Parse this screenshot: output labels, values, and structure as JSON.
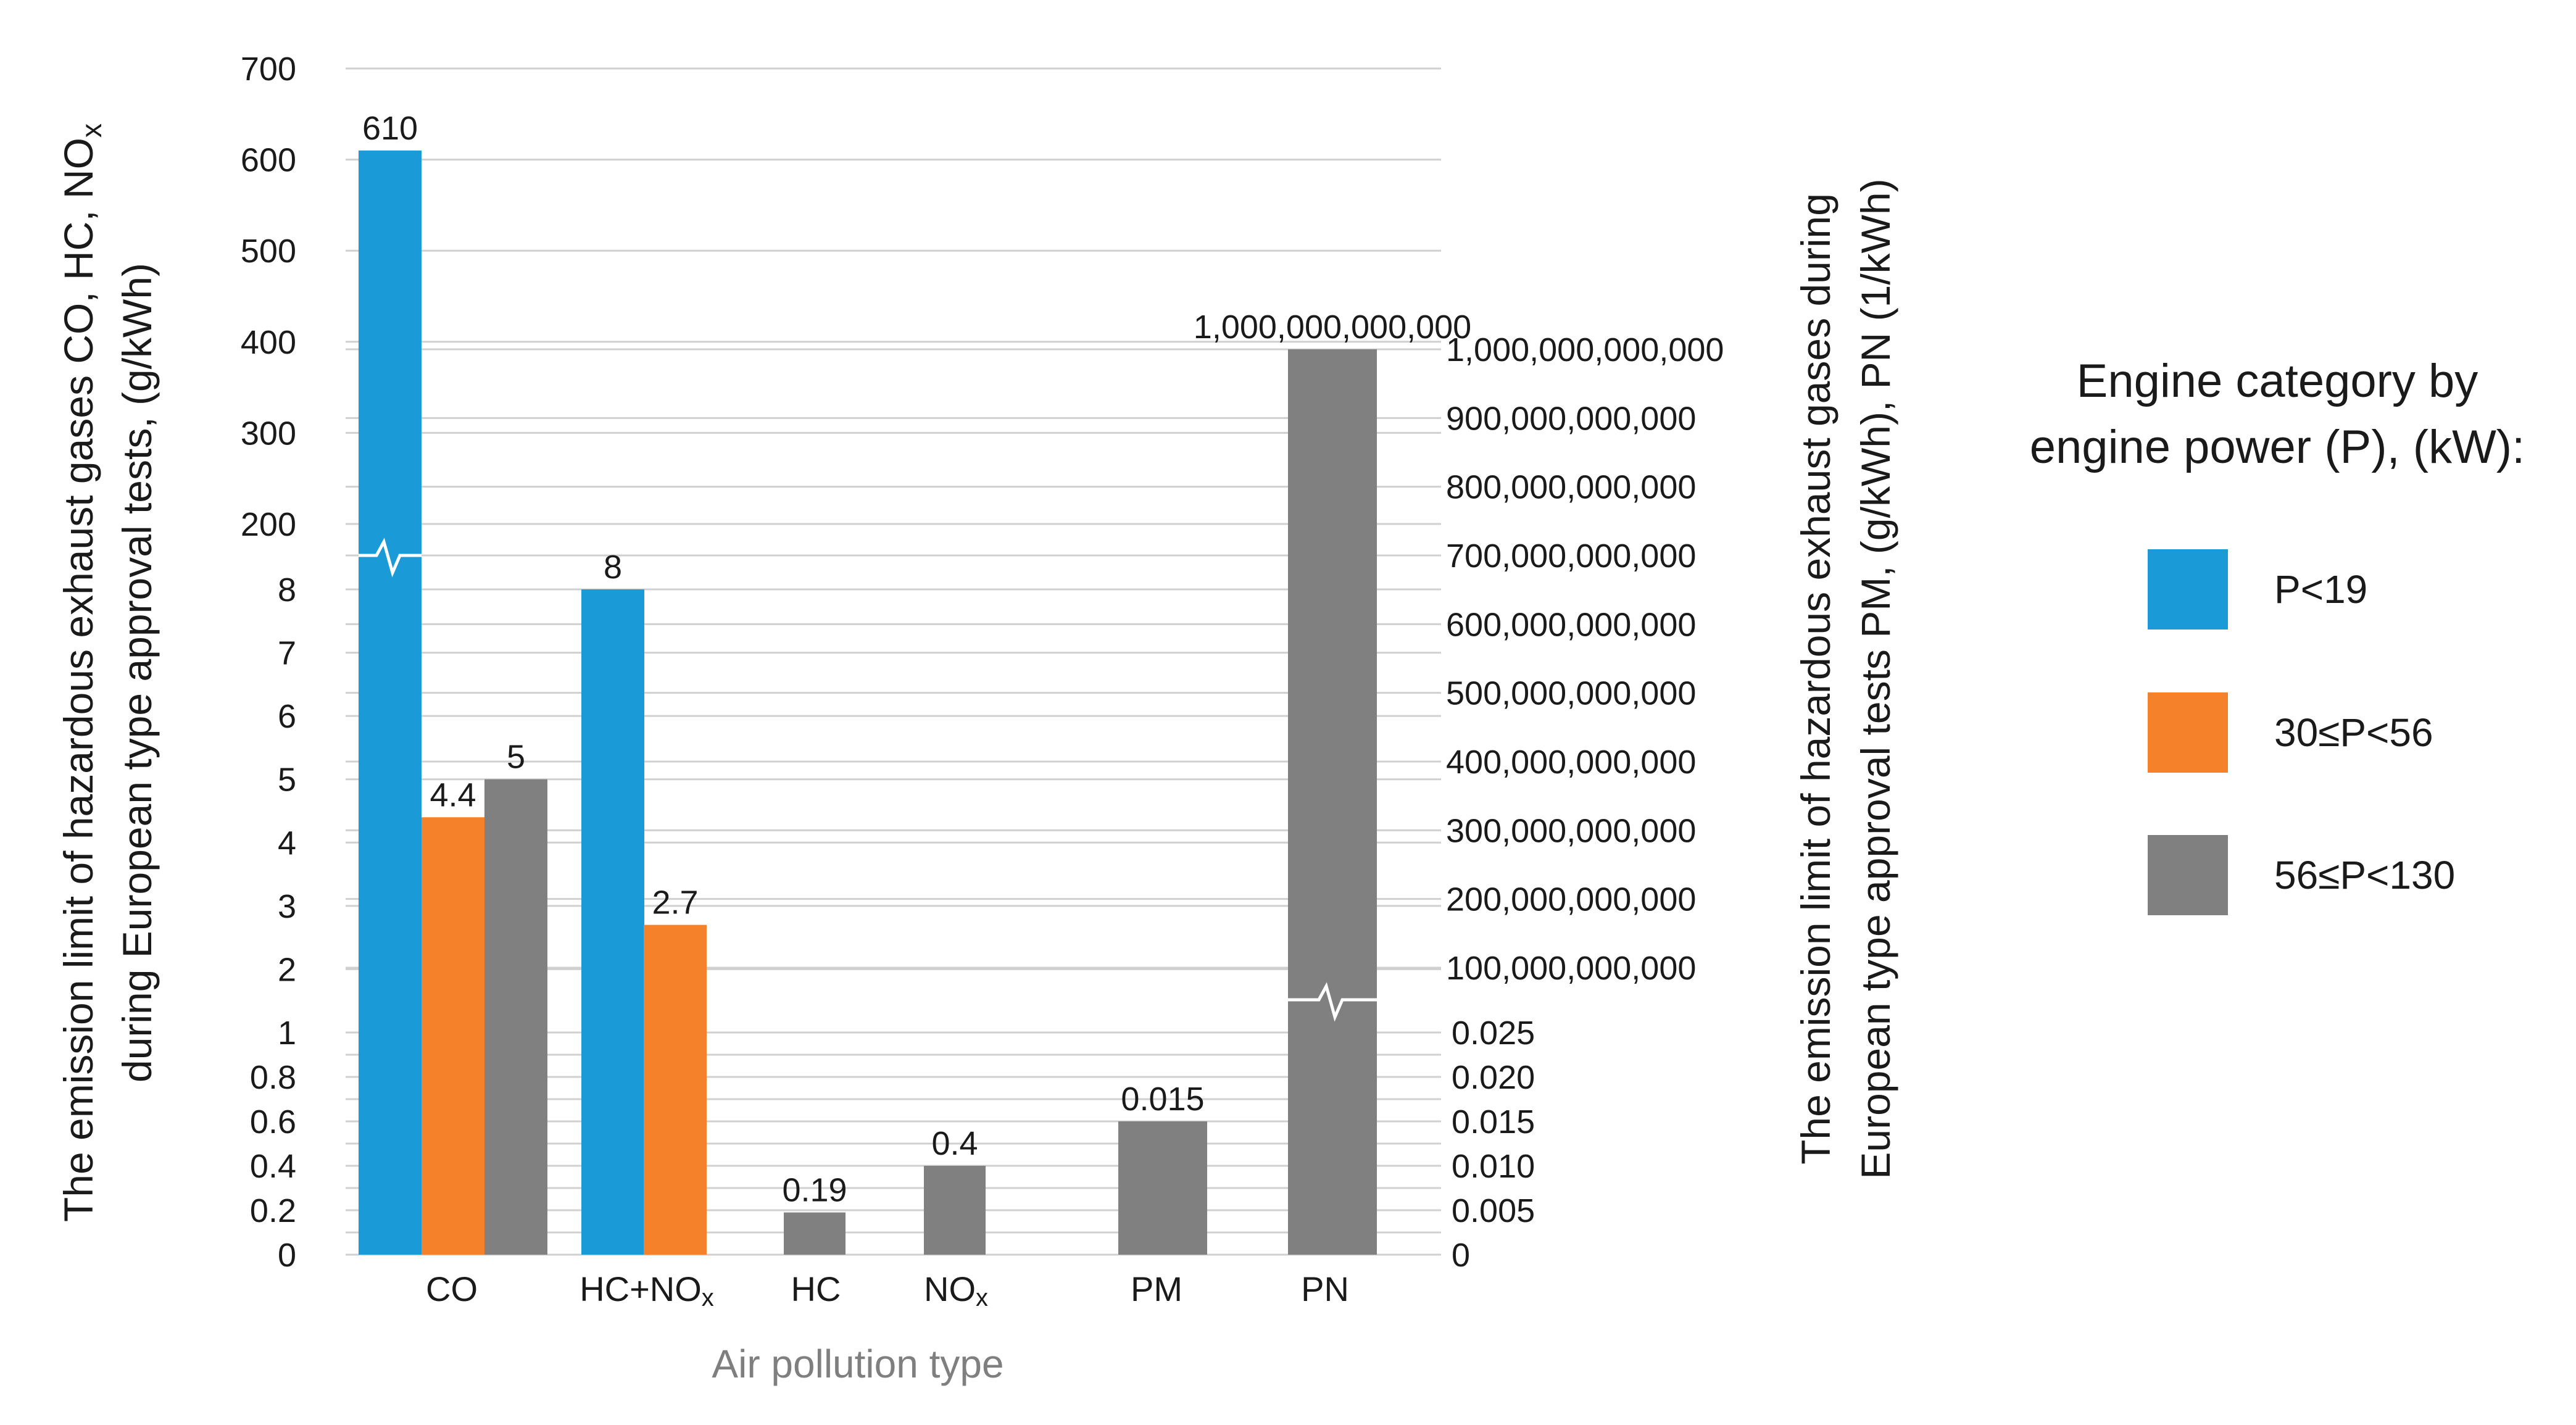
{
  "chart_data": {
    "type": "bar",
    "xlabel": "Air pollution type",
    "ylabel_left": "The emission limit of hazardous  exhaust gases CO, HC, NOx during European type approval tests, (g/kWh)",
    "ylabel_left_line1": "The emission limit of hazardous  exhaust gases CO, HC, NO",
    "ylabel_left_sub": "x",
    "ylabel_left_line2": "during European type approval tests, (g/kWh)",
    "ylabel_right_line1": "The emission limit of hazardous  exhaust gases during",
    "ylabel_right_line2": "European type approval tests PM, (g/kWh), PN (1/kWh)",
    "categories": [
      "CO",
      "HC+NOx",
      "HC",
      "NOx",
      "PM",
      "PN"
    ],
    "category_labels": [
      {
        "main": "CO",
        "sub": ""
      },
      {
        "main": "HC+NO",
        "sub": "x"
      },
      {
        "main": "HC",
        "sub": ""
      },
      {
        "main": "NO",
        "sub": "x"
      },
      {
        "main": "PM",
        "sub": ""
      },
      {
        "main": "PN",
        "sub": ""
      }
    ],
    "left_axis_segments": [
      {
        "range": [
          0,
          1
        ],
        "ticks": [
          "0",
          "0.2",
          "0.4",
          "0.6",
          "0.8",
          "1"
        ],
        "tick_values": [
          0,
          0.2,
          0.4,
          0.6,
          0.8,
          1
        ]
      },
      {
        "range": [
          1,
          8
        ],
        "ticks": [
          "2",
          "3",
          "4",
          "5",
          "6",
          "7",
          "8"
        ],
        "tick_values": [
          2,
          3,
          4,
          5,
          6,
          7,
          8
        ]
      },
      {
        "range": [
          200,
          700
        ],
        "ticks": [
          "200",
          "300",
          "400",
          "500",
          "600",
          "700"
        ],
        "tick_values": [
          200,
          300,
          400,
          500,
          600,
          700
        ]
      }
    ],
    "right_axis_segments": [
      {
        "range": [
          0,
          0.025
        ],
        "ticks": [
          "0",
          "0.005",
          "0.010",
          "0.015",
          "0.020",
          "0.025"
        ],
        "tick_values": [
          0,
          0.005,
          0.01,
          0.015,
          0.02,
          0.025
        ]
      },
      {
        "range": [
          100000000000,
          1000000000000
        ],
        "ticks": [
          "100,000,000,000",
          "200,000,000,000",
          "300,000,000,000",
          "400,000,000,000",
          "500,000,000,000",
          "600,000,000,000",
          "700,000,000,000",
          "800,000,000,000",
          "900,000,000,000",
          "1,000,000,000,000"
        ],
        "tick_values": [
          100000000000,
          200000000000,
          300000000000,
          400000000000,
          500000000000,
          600000000000,
          700000000000,
          800000000000,
          900000000000,
          1000000000000
        ]
      }
    ],
    "series": [
      {
        "name": "P<19",
        "color": "#1a9ad7",
        "values": [
          610,
          8,
          null,
          null,
          null,
          null
        ],
        "labels": [
          "610",
          "8",
          "",
          "",
          "",
          ""
        ],
        "axis": "left"
      },
      {
        "name": "30≤P<56",
        "color": "#f5822a",
        "values": [
          4.4,
          2.7,
          null,
          null,
          null,
          null
        ],
        "labels": [
          "4.4",
          "2.7",
          "",
          "",
          "",
          ""
        ],
        "axis": "left"
      },
      {
        "name": "56≤P<130",
        "color": "#808080",
        "values": [
          5,
          null,
          0.19,
          0.4,
          0.015,
          1000000000000
        ],
        "labels": [
          "5",
          "",
          "0.19",
          "0.4",
          "0.015",
          "1,000,000,000,000"
        ],
        "axis_per_category": [
          "left",
          "left",
          "left",
          "left",
          "right",
          "right"
        ]
      }
    ],
    "legend_title_line1": "Engine category by",
    "legend_title_line2": "engine power (P), (kW):",
    "legend_position": "right",
    "grid": true
  }
}
